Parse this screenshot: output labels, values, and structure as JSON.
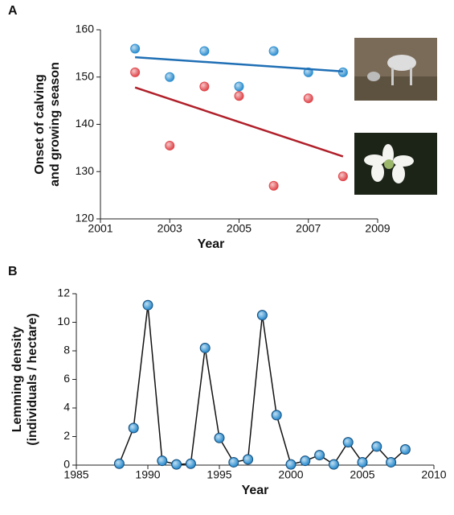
{
  "chart_data": [
    {
      "type": "scatter",
      "panel": "A",
      "xlabel": "Year",
      "ylabel": [
        "Onset of calving",
        "and growing season"
      ],
      "xlim": [
        2001,
        2009
      ],
      "xticks": [
        2001,
        2003,
        2005,
        2007,
        2009
      ],
      "ylim": [
        120,
        160
      ],
      "yticks": [
        120,
        130,
        140,
        150,
        160
      ],
      "series": [
        {
          "color": "#2e8fd0",
          "x": [
            2002,
            2003,
            2004,
            2005,
            2006,
            2007,
            2008
          ],
          "values": [
            156,
            150,
            155.5,
            148,
            155.5,
            151,
            151
          ]
        },
        {
          "color": "#e0474c",
          "x": [
            2002,
            2003,
            2004,
            2005,
            2006,
            2007,
            2008
          ],
          "values": [
            151,
            135.5,
            148,
            146,
            127,
            145.5,
            129
          ]
        },
        {
          "style": "line",
          "color": "#1f6fb5",
          "x": [
            2002,
            2008
          ],
          "values": [
            154.2,
            151.2
          ]
        },
        {
          "style": "line",
          "color": "#b0202a",
          "x": [
            2002,
            2008
          ],
          "values": [
            147.8,
            133.2
          ]
        }
      ]
    },
    {
      "type": "line",
      "panel": "B",
      "xlabel": "Year",
      "ylabel": [
        "Lemming density",
        "(individuals / hectare)"
      ],
      "xlim": [
        1985,
        2010
      ],
      "xticks": [
        1985,
        1990,
        1995,
        2000,
        2005,
        2010
      ],
      "ylim": [
        0,
        12
      ],
      "yticks": [
        0,
        2,
        4,
        6,
        8,
        10,
        12
      ],
      "series": [
        {
          "color": "#2e8fd0",
          "x": [
            1988,
            1989,
            1990,
            1991,
            1992,
            1993,
            1994,
            1995,
            1996,
            1997,
            1998,
            1999,
            2000,
            2001,
            2002,
            2003,
            2004,
            2005,
            2006,
            2007,
            2008
          ],
          "values": [
            0.1,
            2.6,
            11.2,
            0.3,
            0.05,
            0.1,
            8.2,
            1.9,
            0.2,
            0.4,
            10.5,
            3.5,
            0.05,
            0.3,
            0.7,
            0.05,
            1.6,
            0.2,
            1.3,
            0.2,
            1.1
          ]
        }
      ]
    }
  ]
}
